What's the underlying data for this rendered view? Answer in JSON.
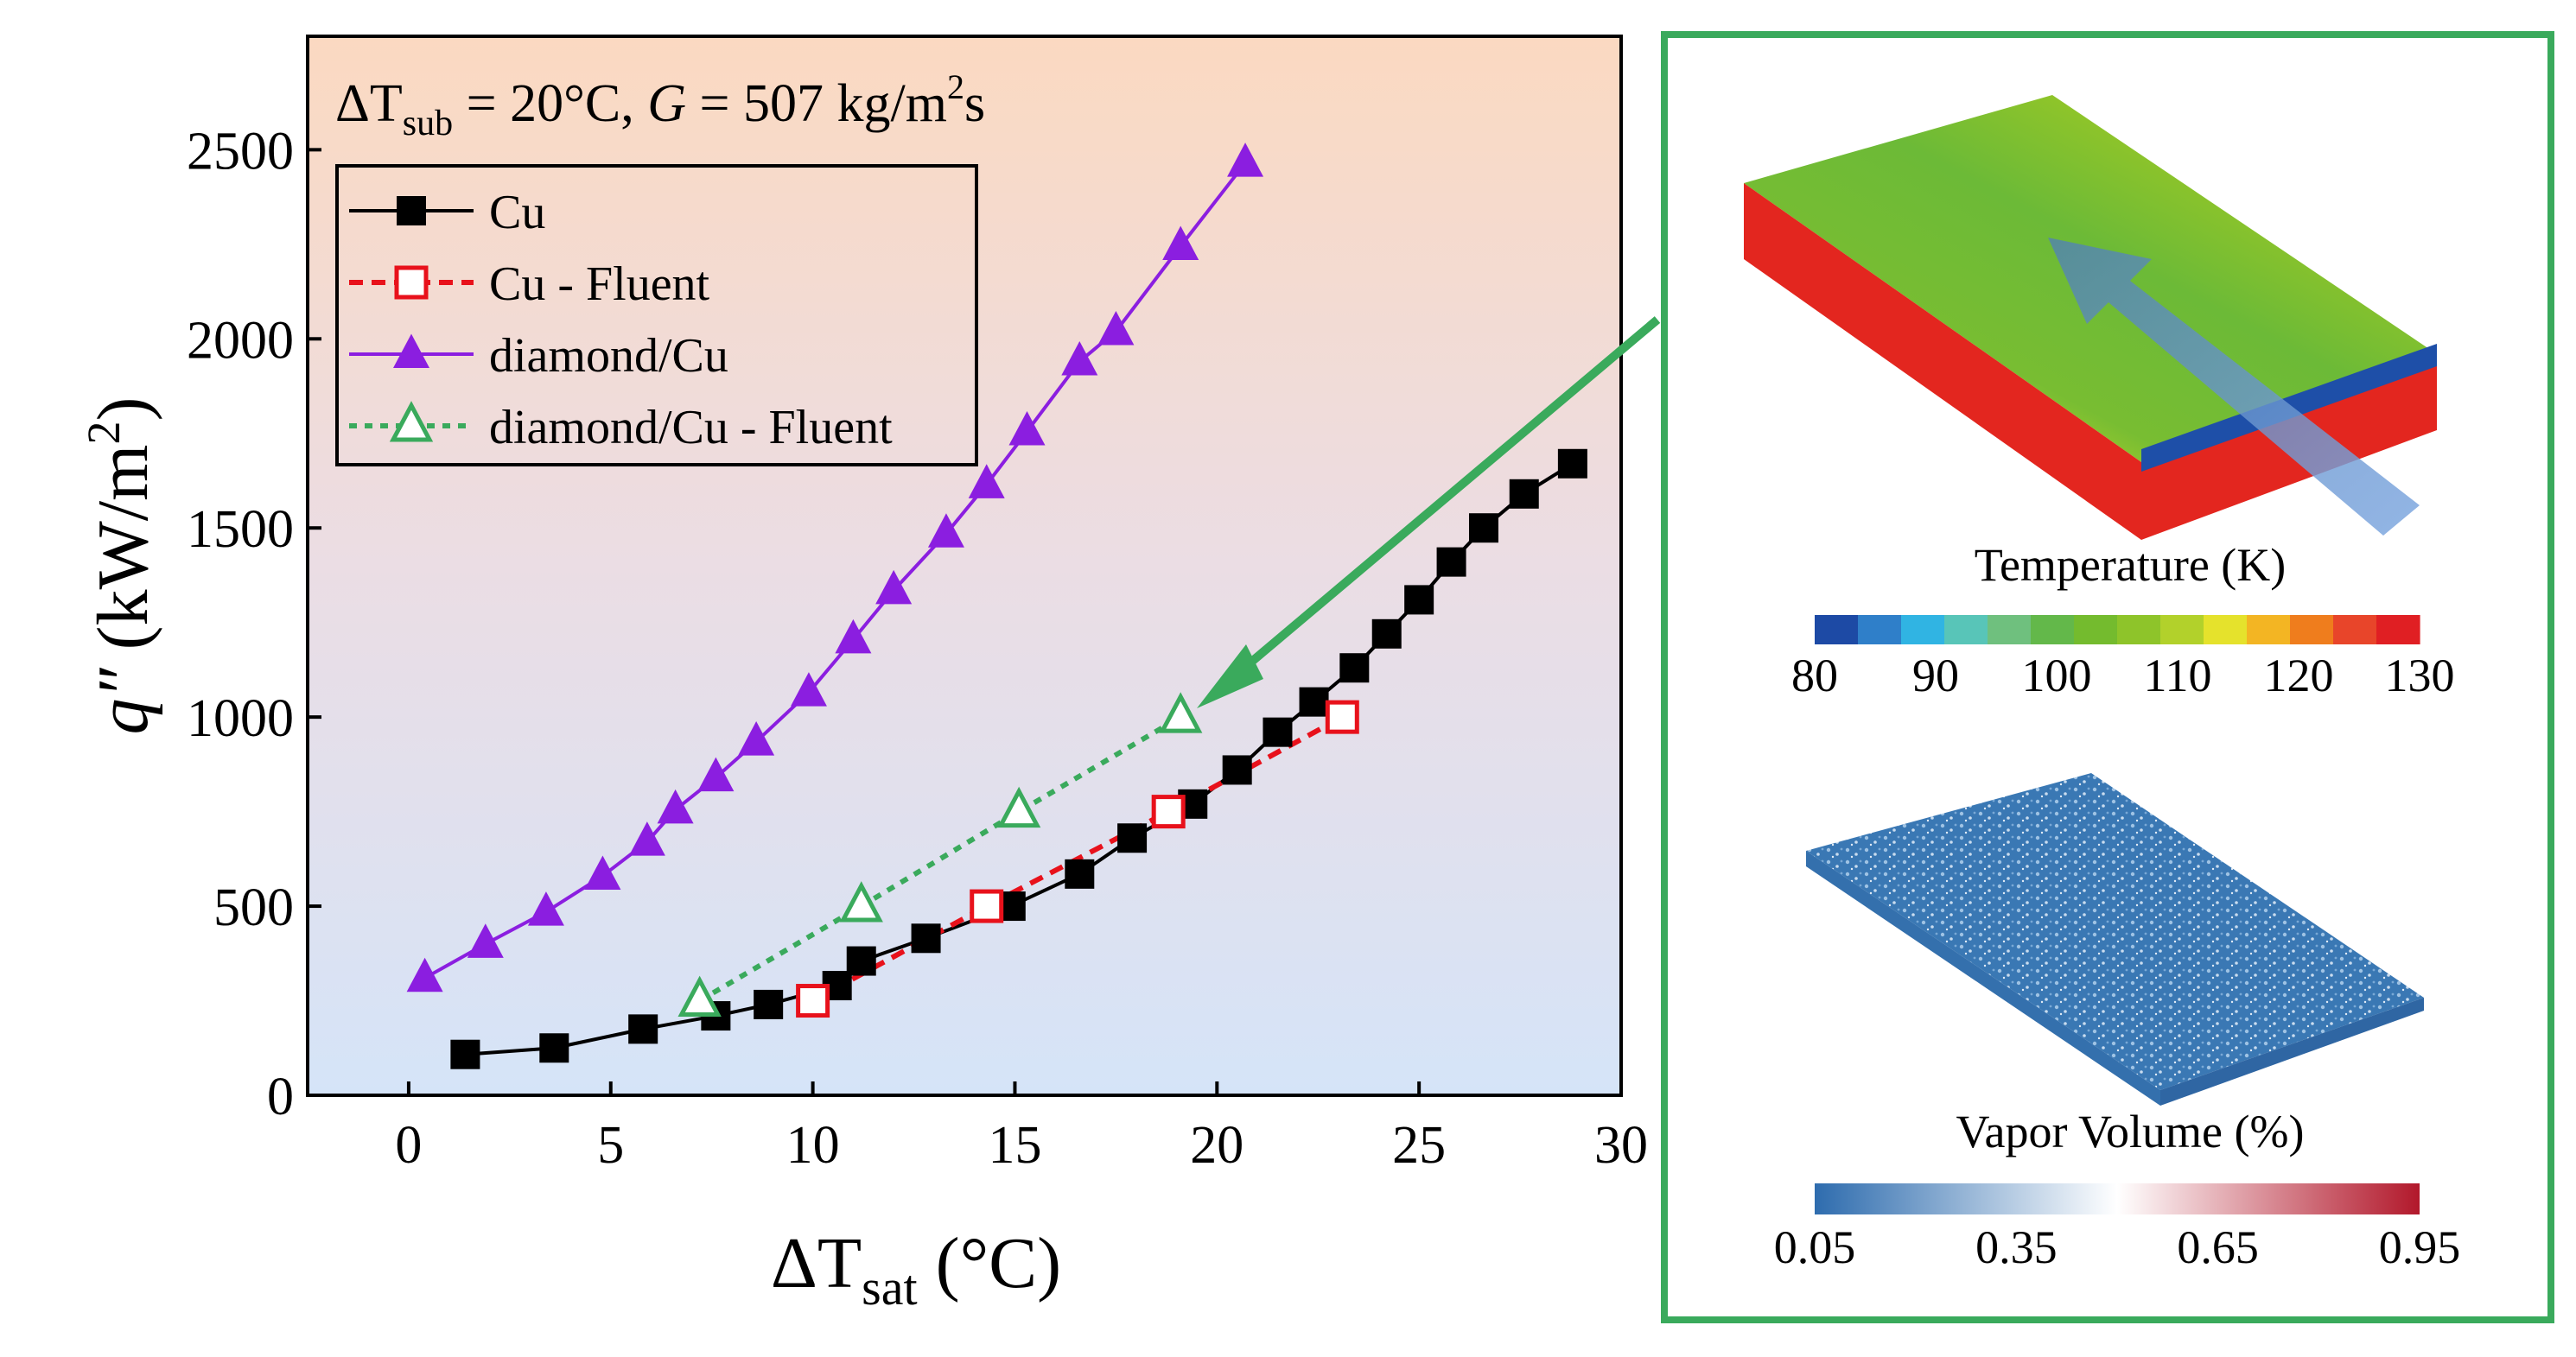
{
  "chart_data": {
    "type": "line",
    "annotation": {
      "prefix": "ΔT",
      "sub1": "sub",
      "mid": " = 20°C, ",
      "g": "G",
      "tail": " = 507 kg/m",
      "sup": "2",
      "end": "s"
    },
    "xlabel": {
      "main": "ΔT",
      "sub": "sat",
      "tail": " (°C)"
    },
    "ylabel": {
      "main": "q″",
      "tail": " (kW/m",
      "sup": "2",
      "end": ")"
    },
    "xlim": [
      -2.5,
      30
    ],
    "ylim": [
      0,
      2800
    ],
    "xticks": [
      0,
      5,
      10,
      15,
      20,
      25,
      30
    ],
    "yticks": [
      0,
      500,
      1000,
      1500,
      2000,
      2500
    ],
    "legend_position": "top-left",
    "series": [
      {
        "name": "Cu",
        "color": "#000000",
        "marker": "square-filled",
        "dash": "solid",
        "x": [
          1.4,
          3.6,
          5.8,
          7.6,
          8.9,
          10.6,
          11.2,
          12.8,
          14.9,
          16.6,
          17.9,
          19.4,
          20.5,
          21.5,
          22.4,
          23.4,
          24.2,
          25.0,
          25.8,
          26.6,
          27.6,
          28.8
        ],
        "y": [
          108,
          125,
          175,
          210,
          240,
          290,
          355,
          415,
          500,
          585,
          680,
          770,
          860,
          960,
          1040,
          1130,
          1220,
          1310,
          1410,
          1500,
          1590,
          1670
        ]
      },
      {
        "name": "Cu - Fluent",
        "color": "#e8111b",
        "marker": "square-open",
        "dash": "dashed",
        "x": [
          10.0,
          14.3,
          18.8,
          23.1
        ],
        "y": [
          250,
          500,
          750,
          1000
        ]
      },
      {
        "name": "diamond/Cu",
        "color": "#8b1ee0",
        "marker": "triangle-filled",
        "dash": "solid",
        "x": [
          0.4,
          1.9,
          3.4,
          4.8,
          5.9,
          6.6,
          7.6,
          8.6,
          9.9,
          11.0,
          12.0,
          13.3,
          14.3,
          15.3,
          16.6,
          17.5,
          19.1,
          20.7
        ],
        "y": [
          310,
          400,
          485,
          580,
          670,
          755,
          840,
          935,
          1065,
          1205,
          1335,
          1485,
          1615,
          1755,
          1940,
          2020,
          2245,
          2465
        ]
      },
      {
        "name": "diamond/Cu - Fluent",
        "color": "#3aaa5c",
        "marker": "triangle-open",
        "dash": "dotted",
        "x": [
          7.2,
          11.2,
          15.1,
          19.1
        ],
        "y": [
          250,
          500,
          750,
          1000
        ]
      }
    ]
  },
  "inset": {
    "temperature": {
      "title": "Temperature (K)",
      "ticks": [
        "80",
        "90",
        "100",
        "110",
        "120",
        "130"
      ],
      "colors": [
        "#1d4aa5",
        "#2f7fc9",
        "#30b4e3",
        "#58c5b8",
        "#6fc07e",
        "#63b84a",
        "#74bb2e",
        "#8ec42a",
        "#b2d12b",
        "#e5e22c",
        "#f3b523",
        "#ef7d1d",
        "#e8452a",
        "#e01f23"
      ]
    },
    "vapor": {
      "title": "Vapor Volume (%)",
      "ticks": [
        "0.05",
        "0.35",
        "0.65",
        "0.95"
      ],
      "colors": [
        "#2e6cae",
        "#ffffff",
        "#b2182b"
      ]
    }
  }
}
